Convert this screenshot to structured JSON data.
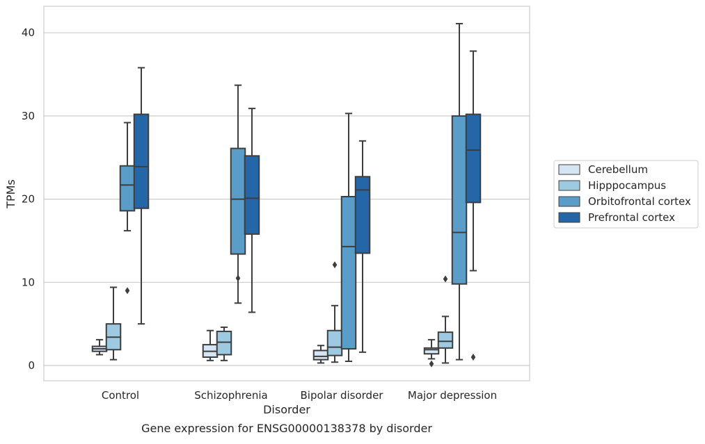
{
  "chart_data": {
    "type": "box",
    "title": "Gene expression for ENSG00000138378 by disorder",
    "xlabel": "Disorder",
    "ylabel": "TPMs",
    "ylim": [
      -1.8,
      43.1
    ],
    "yticks": [
      0,
      10,
      20,
      30,
      40
    ],
    "grid": "horizontal",
    "legend_position": "right",
    "categories": [
      "Control",
      "Schizophrenia",
      "Bipolar disorder",
      "Major depression"
    ],
    "series": [
      {
        "name": "Cerebellum",
        "color": "#d6e5f3",
        "boxes": [
          {
            "whislo": 1.3,
            "q1": 1.7,
            "med": 2.0,
            "q3": 2.3,
            "whishi": 3.1,
            "fliers": []
          },
          {
            "whislo": 0.6,
            "q1": 1.0,
            "med": 1.7,
            "q3": 2.5,
            "whishi": 4.2,
            "fliers": []
          },
          {
            "whislo": 0.3,
            "q1": 0.7,
            "med": 1.1,
            "q3": 1.8,
            "whishi": 2.4,
            "fliers": []
          },
          {
            "whislo": 0.8,
            "q1": 1.4,
            "med": 1.9,
            "q3": 2.1,
            "whishi": 3.1,
            "fliers": [
              0.2
            ]
          }
        ]
      },
      {
        "name": "Hipppocampus",
        "color": "#9dc9e1",
        "boxes": [
          {
            "whislo": 0.7,
            "q1": 1.9,
            "med": 3.4,
            "q3": 5.0,
            "whishi": 9.4,
            "fliers": []
          },
          {
            "whislo": 0.6,
            "q1": 1.3,
            "med": 2.8,
            "q3": 4.1,
            "whishi": 4.6,
            "fliers": []
          },
          {
            "whislo": 0.4,
            "q1": 1.2,
            "med": 2.2,
            "q3": 4.2,
            "whishi": 7.2,
            "fliers": [
              12.1
            ]
          },
          {
            "whislo": 0.3,
            "q1": 2.1,
            "med": 2.9,
            "q3": 4.0,
            "whishi": 5.9,
            "fliers": [
              10.4
            ]
          }
        ]
      },
      {
        "name": "Orbitofrontal cortex",
        "color": "#5b9dc9",
        "boxes": [
          {
            "whislo": 16.2,
            "q1": 18.6,
            "med": 21.7,
            "q3": 24.0,
            "whishi": 29.2,
            "fliers": [
              9.0
            ]
          },
          {
            "whislo": 7.5,
            "q1": 13.4,
            "med": 20.0,
            "q3": 26.1,
            "whishi": 33.7,
            "fliers": [
              10.5
            ]
          },
          {
            "whislo": 0.5,
            "q1": 2.0,
            "med": 14.3,
            "q3": 20.3,
            "whishi": 30.3,
            "fliers": []
          },
          {
            "whislo": 0.7,
            "q1": 9.8,
            "med": 16.0,
            "q3": 30.0,
            "whishi": 41.1,
            "fliers": []
          }
        ]
      },
      {
        "name": "Prefrontal cortex",
        "color": "#2566a8",
        "boxes": [
          {
            "whislo": 5.0,
            "q1": 18.9,
            "med": 23.9,
            "q3": 30.2,
            "whishi": 35.8,
            "fliers": []
          },
          {
            "whislo": 6.4,
            "q1": 15.8,
            "med": 20.1,
            "q3": 25.2,
            "whishi": 30.9,
            "fliers": []
          },
          {
            "whislo": 1.6,
            "q1": 13.5,
            "med": 21.1,
            "q3": 22.7,
            "whishi": 27.0,
            "fliers": []
          },
          {
            "whislo": 11.4,
            "q1": 19.6,
            "med": 25.9,
            "q3": 30.2,
            "whishi": 37.8,
            "fliers": [
              1.0
            ]
          }
        ]
      }
    ]
  }
}
